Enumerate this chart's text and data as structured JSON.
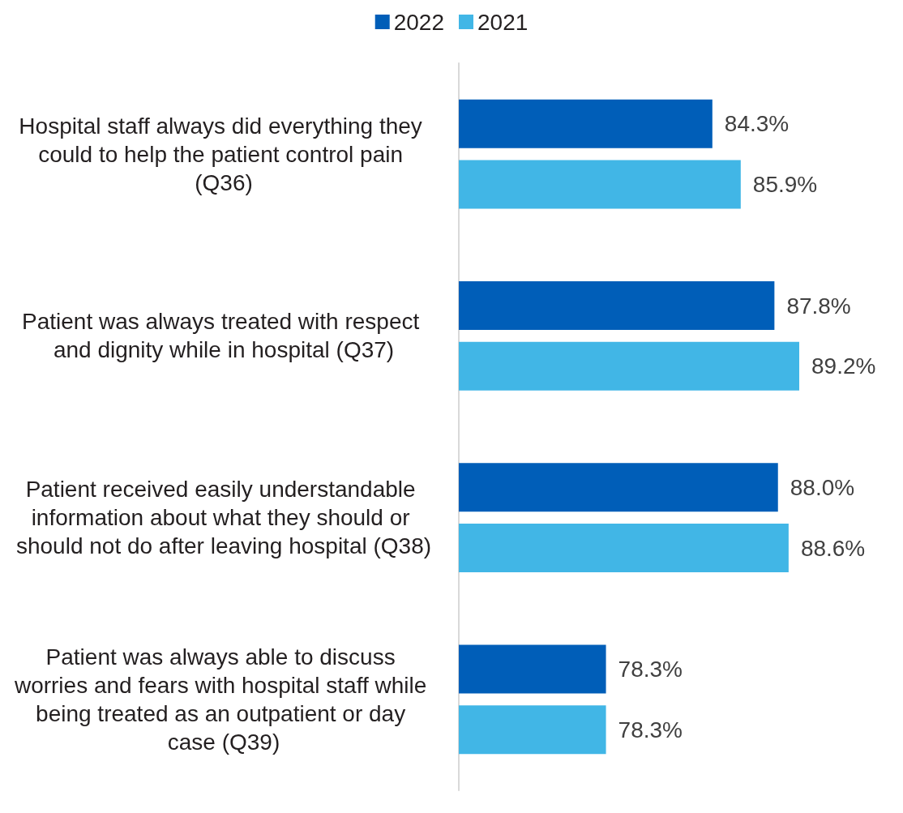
{
  "chart_data": {
    "type": "bar",
    "orientation": "horizontal",
    "legend": "top",
    "grid": false,
    "tick_labels": "y",
    "xlim": [
      70,
      89.2
    ],
    "categories": [
      "Hospital staff always did everything they could to help the patient control pain (Q36)",
      "Patient was always treated with respect and dignity while in hospital (Q37)",
      "Patient received easily understandable information about what they should or should not do after leaving hospital (Q38)",
      "Patient was always able to discuss worries and fears with hospital staff while being treated as an outpatient or day case (Q39)"
    ],
    "series": [
      {
        "name": "2022",
        "color": "#005eb8",
        "values": [
          84.3,
          87.8,
          88.0,
          78.3
        ],
        "value_labels": [
          "84.3%",
          "87.8%",
          "88.0%",
          "78.3%"
        ]
      },
      {
        "name": "2021",
        "color": "#41b6e6",
        "values": [
          85.9,
          89.2,
          88.6,
          78.3
        ],
        "value_labels": [
          "85.9%",
          "89.2%",
          "88.6%",
          "78.3%"
        ]
      }
    ]
  }
}
